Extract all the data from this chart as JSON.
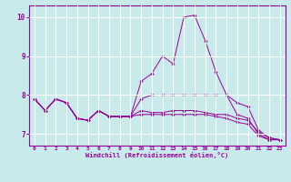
{
  "xlabel": "Windchill (Refroidissement éolien,°C)",
  "background_color": "#c8eaea",
  "line_color": "#990099",
  "grid_color": "#ffffff",
  "xlim": [
    -0.5,
    23.5
  ],
  "ylim": [
    6.7,
    10.3
  ],
  "yticks": [
    7,
    8,
    9,
    10
  ],
  "xticks": [
    0,
    1,
    2,
    3,
    4,
    5,
    6,
    7,
    8,
    9,
    10,
    11,
    12,
    13,
    14,
    15,
    16,
    17,
    18,
    19,
    20,
    21,
    22,
    23
  ],
  "lines": [
    {
      "x": [
        0,
        1,
        2,
        3,
        4,
        5,
        6,
        7,
        8,
        9,
        10,
        11,
        12,
        13,
        14,
        15,
        16,
        17,
        18,
        19,
        20,
        21,
        22,
        23
      ],
      "y": [
        7.9,
        7.6,
        7.9,
        7.8,
        7.4,
        7.35,
        7.6,
        7.45,
        7.45,
        7.45,
        8.35,
        8.55,
        9.0,
        8.8,
        10.0,
        10.05,
        9.4,
        8.6,
        8.0,
        7.5,
        7.4,
        7.0,
        6.85,
        6.85
      ]
    },
    {
      "x": [
        0,
        1,
        2,
        3,
        4,
        5,
        6,
        7,
        8,
        9,
        10,
        11,
        12,
        13,
        14,
        15,
        16,
        17,
        18,
        19,
        20,
        21,
        22,
        23
      ],
      "y": [
        7.9,
        7.6,
        7.9,
        7.8,
        7.4,
        7.35,
        7.6,
        7.45,
        7.45,
        7.45,
        7.9,
        8.0,
        8.0,
        8.0,
        8.0,
        8.0,
        8.0,
        8.0,
        8.0,
        7.8,
        7.7,
        7.1,
        6.9,
        6.85
      ]
    },
    {
      "x": [
        0,
        1,
        2,
        3,
        4,
        5,
        6,
        7,
        8,
        9,
        10,
        11,
        12,
        13,
        14,
        15,
        16,
        17,
        18,
        19,
        20,
        21,
        22,
        23
      ],
      "y": [
        7.9,
        7.6,
        7.9,
        7.8,
        7.4,
        7.35,
        7.6,
        7.45,
        7.45,
        7.45,
        7.6,
        7.55,
        7.55,
        7.6,
        7.6,
        7.6,
        7.55,
        7.5,
        7.5,
        7.4,
        7.35,
        7.05,
        6.9,
        6.85
      ]
    },
    {
      "x": [
        0,
        1,
        2,
        3,
        4,
        5,
        6,
        7,
        8,
        9,
        10,
        11,
        12,
        13,
        14,
        15,
        16,
        17,
        18,
        19,
        20,
        21,
        22,
        23
      ],
      "y": [
        7.9,
        7.6,
        7.9,
        7.8,
        7.4,
        7.35,
        7.6,
        7.45,
        7.45,
        7.45,
        7.5,
        7.5,
        7.5,
        7.5,
        7.5,
        7.5,
        7.5,
        7.45,
        7.4,
        7.3,
        7.25,
        6.95,
        6.85,
        6.85
      ]
    }
  ]
}
